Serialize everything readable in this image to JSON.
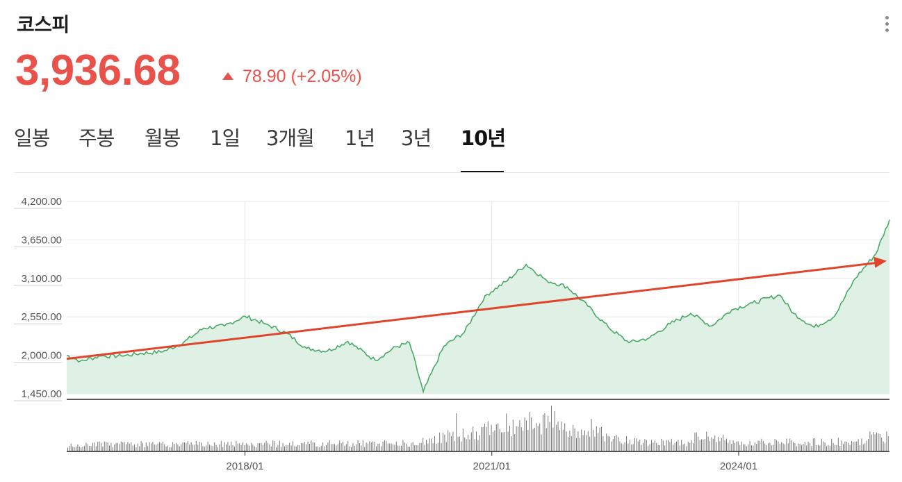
{
  "header": {
    "title": "코스피",
    "price": "3,936.68",
    "change": "78.90 (+2.05%)"
  },
  "colors": {
    "up": "#e9524a",
    "line": "#4aa866",
    "area": "#dff1e4",
    "trend_arrow": "#e0452c"
  },
  "tabs": [
    {
      "label": "일봉",
      "active": false
    },
    {
      "label": "주봉",
      "active": false
    },
    {
      "label": "월봉",
      "active": false
    },
    {
      "label": "1일",
      "active": false
    },
    {
      "label": "3개월",
      "active": false
    },
    {
      "label": "1년",
      "active": false
    },
    {
      "label": "3년",
      "active": false
    },
    {
      "label": "10년",
      "active": true
    }
  ],
  "chart_data": {
    "type": "area",
    "ylim": [
      1450,
      4200
    ],
    "y_ticks": [
      "4,200.00",
      "3,650.00",
      "3,100.00",
      "2,550.00",
      "2,000.00",
      "1,450.00"
    ],
    "x_ticks": [
      "2018/01",
      "2021/01",
      "2024/01"
    ],
    "grid": true,
    "series": [
      {
        "x": [
          "2015/11",
          "2016/01",
          "2016/04",
          "2016/07",
          "2016/10",
          "2017/01",
          "2017/04",
          "2017/07",
          "2017/10",
          "2018/01",
          "2018/04",
          "2018/07",
          "2018/10",
          "2019/01",
          "2019/04",
          "2019/08",
          "2019/11",
          "2020/01",
          "2020/03",
          "2020/06",
          "2020/09",
          "2020/12",
          "2021/03",
          "2021/06",
          "2021/09",
          "2021/12",
          "2022/03",
          "2022/06",
          "2022/09",
          "2022/12",
          "2023/03",
          "2023/06",
          "2023/09",
          "2023/12",
          "2024/03",
          "2024/07",
          "2024/09",
          "2024/12",
          "2025/03",
          "2025/06",
          "2025/09",
          "2025/11"
        ],
        "values": [
          2000,
          1920,
          1990,
          1990,
          2030,
          2050,
          2180,
          2390,
          2420,
          2560,
          2450,
          2320,
          2100,
          2060,
          2200,
          1930,
          2120,
          2180,
          1480,
          2130,
          2330,
          2850,
          3050,
          3300,
          3070,
          2980,
          2700,
          2400,
          2180,
          2250,
          2450,
          2600,
          2420,
          2650,
          2750,
          2860,
          2600,
          2400,
          2560,
          3100,
          3450,
          3936.68
        ]
      }
    ],
    "trend_line": {
      "start": [
        "2015/11",
        1950
      ],
      "end": [
        "2025/10",
        3340
      ]
    },
    "volume_scale": "relative"
  }
}
